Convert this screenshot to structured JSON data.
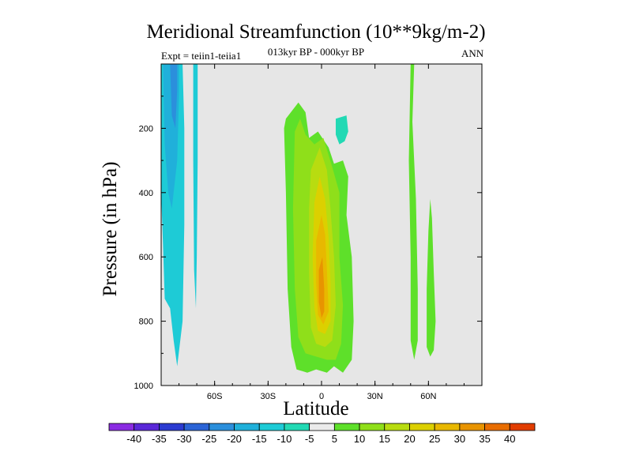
{
  "chart_data": {
    "type": "heatmap",
    "title": "Meridional Streamfunction (10**9kg/m-2)",
    "subtitle": "013kyr BP - 000kyr BP",
    "experiment": "Expt = teiin1-teiia1",
    "season": "ANN",
    "xlabel": "Latitude",
    "ylabel": "Pressure (in hPa)",
    "xlim": [
      -90,
      90
    ],
    "ylim": [
      1000,
      0
    ],
    "x_ticks": [
      -60,
      -30,
      0,
      30,
      60
    ],
    "x_tick_labels": [
      "60S",
      "30S",
      "0",
      "30N",
      "60N"
    ],
    "y_ticks": [
      200,
      400,
      600,
      800,
      1000
    ],
    "y_tick_labels": [
      "200",
      "400",
      "600",
      "800",
      "1000"
    ],
    "background_color": "#e6e6e6",
    "colorbar": {
      "levels": [
        -40,
        -35,
        -30,
        -25,
        -20,
        -15,
        -10,
        -5,
        5,
        10,
        15,
        20,
        25,
        30,
        35,
        40
      ],
      "level_labels": [
        "-40",
        "-35",
        "-30",
        "-25",
        "-20",
        "-15",
        "-10",
        "-5",
        "5",
        "10",
        "15",
        "20",
        "25",
        "30",
        "35",
        "40"
      ],
      "colors": [
        "#8a2be2",
        "#5a28d8",
        "#2b3bd1",
        "#2b64d6",
        "#2b8fdc",
        "#20b0da",
        "#1ecbd6",
        "#22d9b4",
        "#ebebeb",
        "#5ee02a",
        "#8fdf1a",
        "#b8dc10",
        "#dcd000",
        "#e8b800",
        "#e89400",
        "#e86d00",
        "#e13d00"
      ]
    },
    "regions": [
      {
        "value": -10,
        "color": "#1ecbd6",
        "points": [
          [
            -90,
            0
          ],
          [
            -78,
            0
          ],
          [
            -77,
            200
          ],
          [
            -77,
            500
          ],
          [
            -78,
            800
          ],
          [
            -81,
            940
          ],
          [
            -83,
            860
          ],
          [
            -85,
            760
          ],
          [
            -88,
            730
          ],
          [
            -89,
            560
          ],
          [
            -90,
            400
          ]
        ]
      },
      {
        "value": -15,
        "color": "#20b0da",
        "points": [
          [
            -89,
            0
          ],
          [
            -80,
            0
          ],
          [
            -80,
            100
          ],
          [
            -81,
            300
          ],
          [
            -84,
            450
          ],
          [
            -86,
            400
          ],
          [
            -88,
            250
          ]
        ]
      },
      {
        "value": -20,
        "color": "#2b8fdc",
        "points": [
          [
            -85,
            0
          ],
          [
            -81,
            0
          ],
          [
            -81,
            80
          ],
          [
            -82,
            200
          ],
          [
            -84,
            160
          ]
        ]
      },
      {
        "value": -10,
        "color": "#1ecbd6",
        "points": [
          [
            -72,
            0
          ],
          [
            -69.5,
            0
          ],
          [
            -69.5,
            300
          ],
          [
            -70,
            600
          ],
          [
            -70.5,
            760
          ],
          [
            -71.5,
            640
          ],
          [
            -72,
            300
          ]
        ]
      },
      {
        "value": 5,
        "color": "#5ee02a",
        "points": [
          [
            -20,
            170
          ],
          [
            -13,
            120
          ],
          [
            -9,
            150
          ],
          [
            -7,
            230
          ],
          [
            -2,
            210
          ],
          [
            4,
            260
          ],
          [
            7,
            310
          ],
          [
            12,
            300
          ],
          [
            15,
            350
          ],
          [
            14,
            470
          ],
          [
            17,
            600
          ],
          [
            18,
            800
          ],
          [
            17,
            920
          ],
          [
            12,
            960
          ],
          [
            7,
            940
          ],
          [
            3,
            960
          ],
          [
            -3,
            950
          ],
          [
            -8,
            960
          ],
          [
            -14,
            950
          ],
          [
            -17,
            880
          ],
          [
            -19,
            700
          ],
          [
            -20,
            400
          ],
          [
            -21,
            200
          ]
        ]
      },
      {
        "value": 10,
        "color": "#8fdf1a",
        "points": [
          [
            -15,
            210
          ],
          [
            -12,
            170
          ],
          [
            -9,
            220
          ],
          [
            -4,
            250
          ],
          [
            1,
            230
          ],
          [
            6,
            320
          ],
          [
            10,
            400
          ],
          [
            10,
            600
          ],
          [
            12,
            750
          ],
          [
            11,
            870
          ],
          [
            8,
            920
          ],
          [
            3,
            920
          ],
          [
            -3,
            910
          ],
          [
            -9,
            900
          ],
          [
            -13,
            850
          ],
          [
            -15,
            700
          ],
          [
            -16,
            450
          ]
        ]
      },
      {
        "value": 15,
        "color": "#b8dc10",
        "points": [
          [
            -6,
            330
          ],
          [
            -1,
            260
          ],
          [
            3,
            330
          ],
          [
            5,
            450
          ],
          [
            7,
            600
          ],
          [
            8,
            750
          ],
          [
            6,
            860
          ],
          [
            2,
            880
          ],
          [
            -3,
            870
          ],
          [
            -6,
            820
          ],
          [
            -7,
            650
          ],
          [
            -7,
            450
          ]
        ]
      },
      {
        "value": 20,
        "color": "#dcd000",
        "points": [
          [
            -4,
            430
          ],
          [
            -1,
            350
          ],
          [
            2,
            420
          ],
          [
            4,
            540
          ],
          [
            5,
            680
          ],
          [
            5,
            800
          ],
          [
            2,
            840
          ],
          [
            -2,
            830
          ],
          [
            -4,
            760
          ],
          [
            -5,
            600
          ]
        ]
      },
      {
        "value": 25,
        "color": "#e8b800",
        "points": [
          [
            -3,
            550
          ],
          [
            0,
            470
          ],
          [
            2,
            530
          ],
          [
            3,
            640
          ],
          [
            4,
            770
          ],
          [
            1,
            810
          ],
          [
            -2,
            780
          ],
          [
            -3,
            680
          ]
        ]
      },
      {
        "value": 30,
        "color": "#e89400",
        "points": [
          [
            -1.5,
            640
          ],
          [
            0.5,
            600
          ],
          [
            1.5,
            700
          ],
          [
            1.5,
            770
          ],
          [
            0,
            790
          ],
          [
            -1.5,
            740
          ]
        ]
      },
      {
        "value": 5,
        "color": "#22d9b4",
        "points": [
          [
            8,
            170
          ],
          [
            14,
            160
          ],
          [
            15,
            210
          ],
          [
            13,
            240
          ],
          [
            10,
            250
          ],
          [
            8,
            220
          ]
        ]
      },
      {
        "value": 5,
        "color": "#5ee02a",
        "points": [
          [
            50,
            0
          ],
          [
            52,
            0
          ],
          [
            51,
            180
          ],
          [
            53,
            420
          ],
          [
            54,
            700
          ],
          [
            54,
            860
          ],
          [
            52,
            920
          ],
          [
            50,
            860
          ],
          [
            50,
            600
          ],
          [
            49,
            300
          ]
        ]
      },
      {
        "value": 5,
        "color": "#5ee02a",
        "points": [
          [
            61,
            420
          ],
          [
            62,
            480
          ],
          [
            63,
            650
          ],
          [
            64,
            800
          ],
          [
            63,
            890
          ],
          [
            61,
            910
          ],
          [
            59,
            880
          ],
          [
            59,
            700
          ],
          [
            60,
            520
          ]
        ]
      }
    ]
  }
}
